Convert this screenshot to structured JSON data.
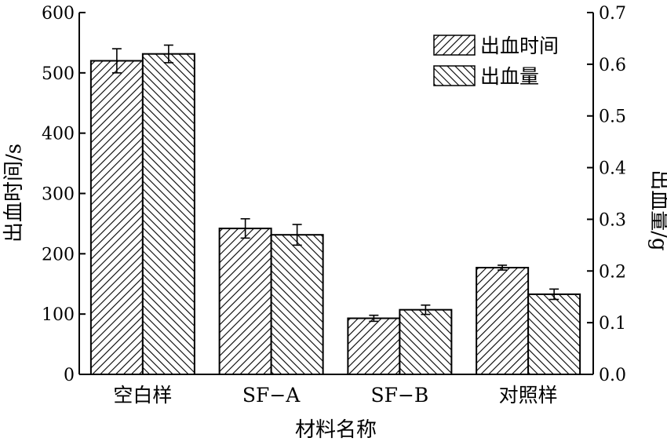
{
  "chart_data": {
    "type": "bar",
    "categories": [
      "空白样",
      "SF−A",
      "SF−B",
      "对照样"
    ],
    "xlabel": "材料名称",
    "ylabel_left": "出血时间/s",
    "ylabel_right": "出血量/g",
    "ylim_left": [
      0,
      600
    ],
    "ylim_right": [
      0,
      0.7
    ],
    "yticks_left": [
      "0",
      "100",
      "200",
      "300",
      "400",
      "500",
      "600"
    ],
    "yticks_right": [
      "0.0",
      "0.1",
      "0.2",
      "0.3",
      "0.4",
      "0.5",
      "0.6",
      "0.7"
    ],
    "legend_position": "top-right",
    "grid": false,
    "series": [
      {
        "name": "出血时间",
        "axis": "left",
        "hatch": "forward-diagonal",
        "values": [
          520,
          242,
          93,
          177
        ],
        "errors": [
          20,
          16,
          5,
          4
        ]
      },
      {
        "name": "出血量",
        "axis": "right",
        "hatch": "backward-diagonal",
        "values": [
          0.62,
          0.27,
          0.125,
          0.155
        ],
        "errors": [
          0.017,
          0.02,
          0.009,
          0.01
        ]
      }
    ]
  }
}
